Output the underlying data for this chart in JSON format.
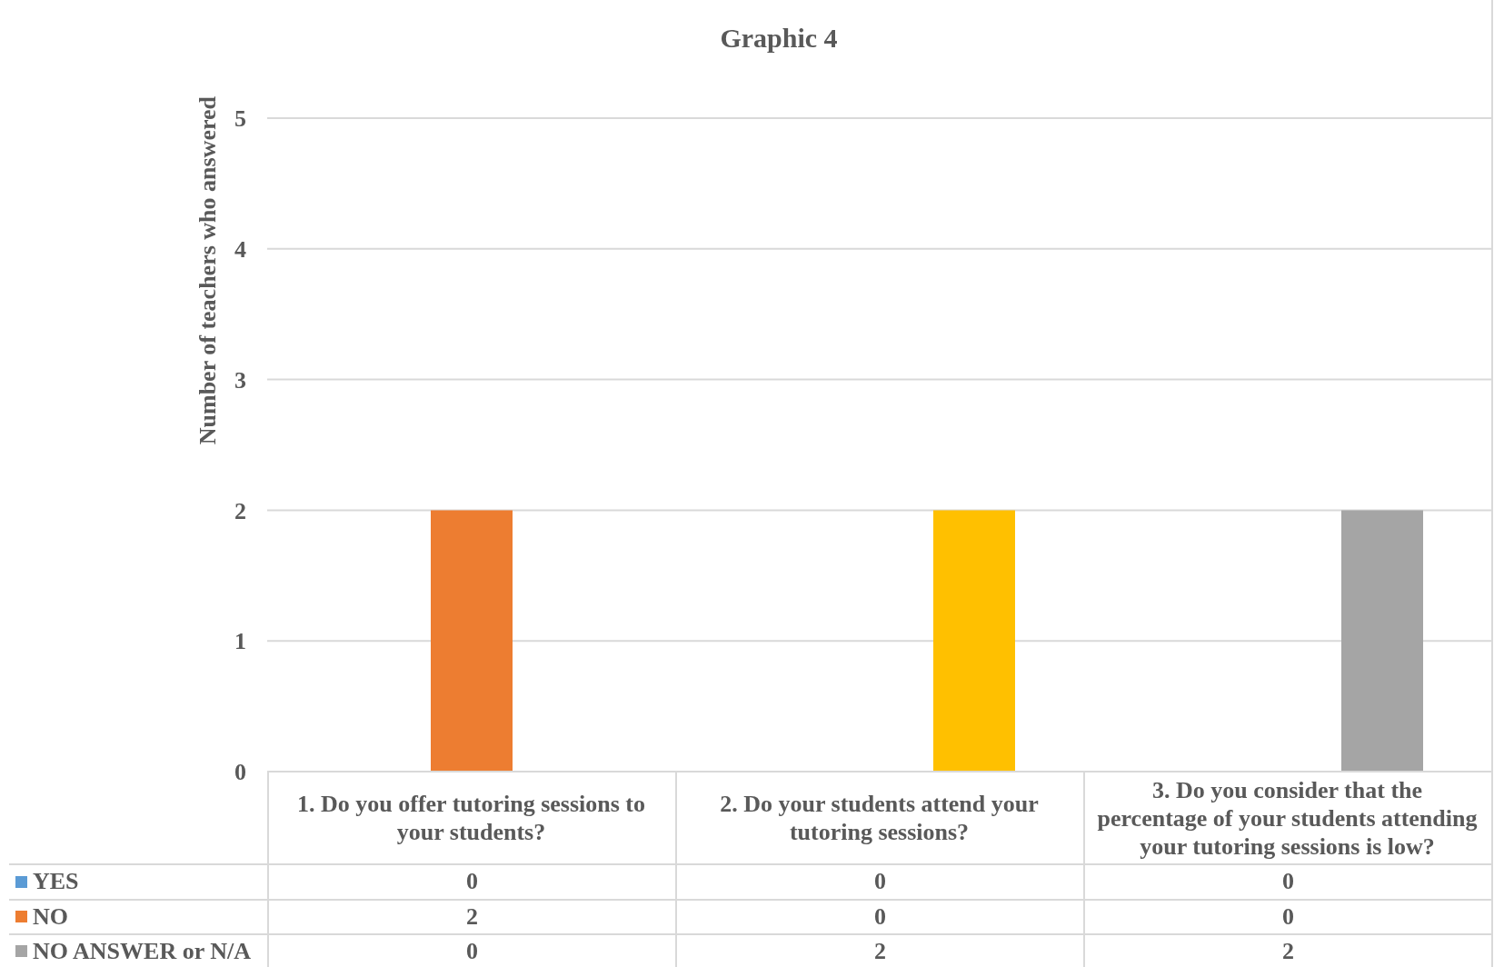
{
  "chart_data": {
    "type": "bar",
    "title": "Graphic 4",
    "ylabel": "Number of teachers who answered",
    "categories": [
      "1. Do you offer tutoring sessions to your students?",
      "2. Do your students attend your tutoring sessions?",
      "3. Do you consider that the percentage of your students attending your tutoring sessions is low?"
    ],
    "series": [
      {
        "name": "YES",
        "color": "#5b9bd5",
        "values": [
          0,
          0,
          0
        ]
      },
      {
        "name": "NO",
        "color": "#ed7d31",
        "values": [
          2,
          0,
          0
        ]
      },
      {
        "name": "NO ANSWER or N/A",
        "color": "#a5a5a5",
        "values": [
          0,
          2,
          2
        ],
        "colors": [
          "#a5a5a5",
          "#ffc000",
          "#a5a5a5"
        ]
      }
    ],
    "ylim": [
      0,
      5
    ],
    "yticks": [
      0,
      1,
      2,
      3,
      4,
      5
    ],
    "grid": "y",
    "legend": "bottom",
    "data_labels": true
  }
}
